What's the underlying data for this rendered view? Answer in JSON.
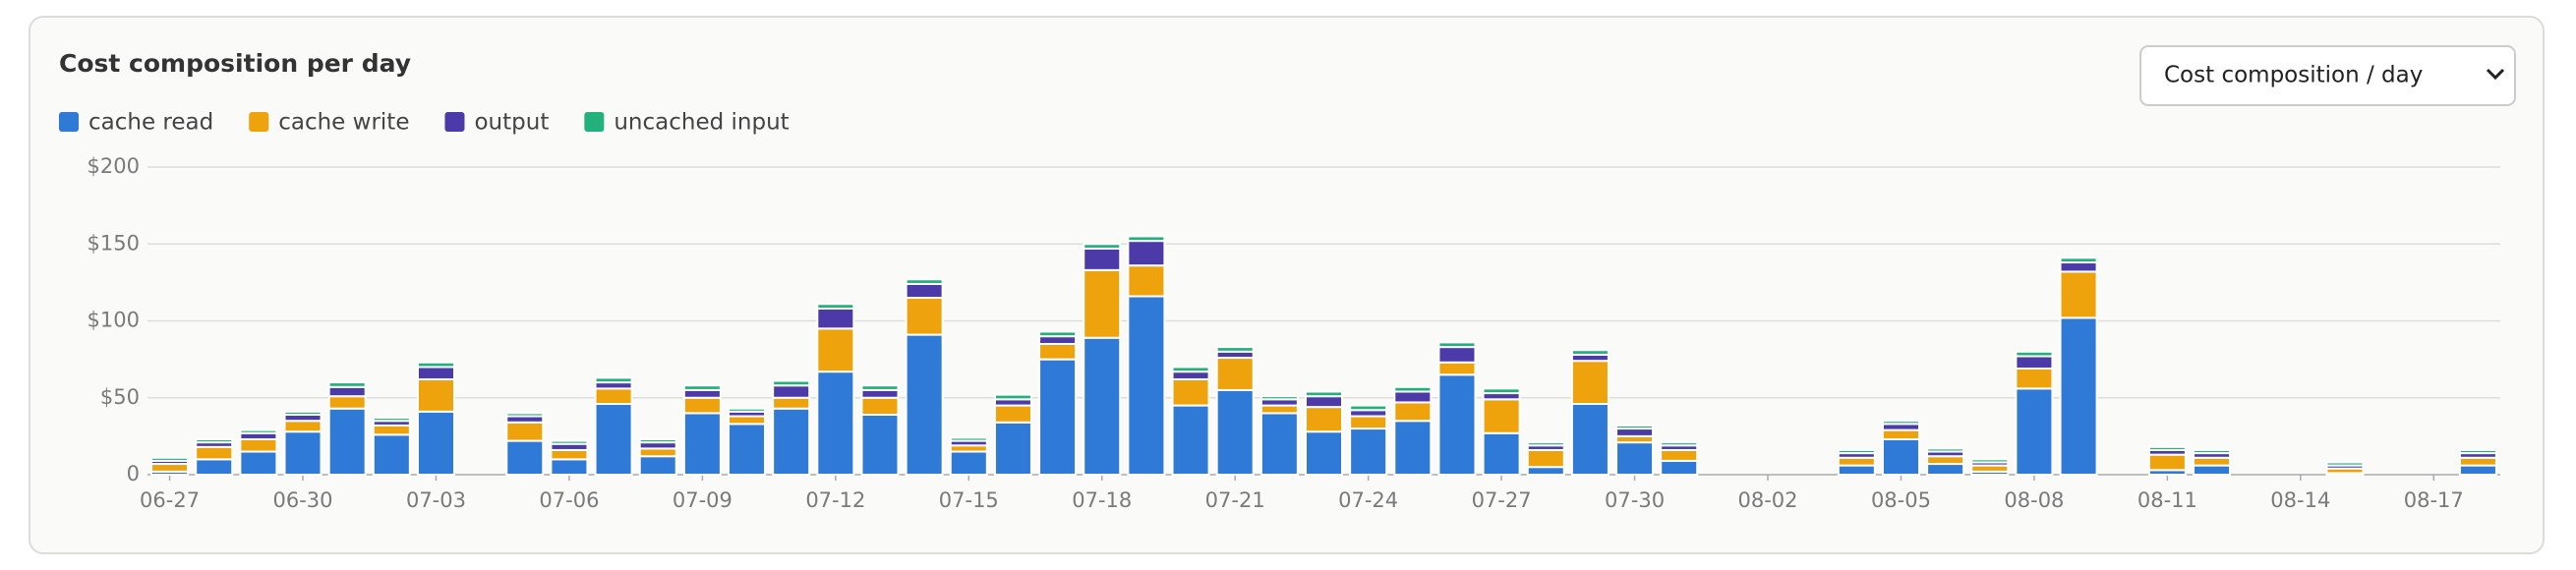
{
  "chart_data": {
    "type": "stacked-bar",
    "title": "Cost composition per day",
    "selector": "Cost composition / day",
    "categories": [
      "06-27",
      null,
      null,
      "06-30",
      null,
      null,
      "07-03",
      null,
      null,
      "07-06",
      null,
      null,
      "07-09",
      null,
      null,
      "07-12",
      null,
      null,
      "07-15",
      null,
      null,
      "07-18",
      null,
      null,
      "07-21",
      null,
      null,
      "07-24",
      null,
      null,
      "07-27",
      null,
      null,
      "07-30",
      null,
      null,
      "08-02",
      null,
      null,
      "08-05",
      null,
      null,
      "08-08",
      null,
      null,
      "08-11",
      null,
      null,
      "08-14",
      null,
      null,
      "08-17",
      null
    ],
    "series": [
      {
        "name": "cache read",
        "color": "#2f7ad6",
        "values": [
          2,
          10,
          15,
          28,
          43,
          26,
          41,
          0,
          22,
          10,
          46,
          12,
          40,
          33,
          43,
          67,
          39,
          91,
          15,
          34,
          75,
          89,
          116,
          45,
          55,
          40,
          28,
          30,
          35,
          65,
          27,
          5,
          46,
          21,
          9,
          0,
          0,
          0,
          6,
          23,
          7,
          2,
          56,
          102,
          0,
          3,
          6,
          0,
          0,
          1,
          0,
          0,
          6
        ]
      },
      {
        "name": "cache write",
        "color": "#eea20c",
        "values": [
          5,
          8,
          8,
          7,
          8,
          6,
          21,
          0,
          12,
          6,
          10,
          5,
          10,
          5,
          7,
          28,
          11,
          24,
          4,
          11,
          10,
          44,
          20,
          17,
          21,
          5,
          16,
          8,
          12,
          8,
          22,
          11,
          28,
          4,
          7,
          0,
          0,
          0,
          5,
          6,
          5,
          4,
          13,
          30,
          0,
          10,
          5,
          0,
          0,
          3,
          0,
          0,
          5
        ]
      },
      {
        "name": "output",
        "color": "#4b3aa8",
        "values": [
          2,
          3,
          4,
          4,
          6,
          3,
          8,
          0,
          4,
          4,
          4,
          4,
          5,
          3,
          8,
          13,
          5,
          9,
          3,
          4,
          5,
          14,
          16,
          5,
          4,
          4,
          7,
          4,
          7,
          10,
          4,
          3,
          4,
          5,
          3,
          0,
          0,
          0,
          3,
          4,
          3,
          2,
          8,
          6,
          0,
          3,
          3,
          0,
          0,
          2,
          0,
          0,
          3
        ]
      },
      {
        "name": "uncached input",
        "color": "#22b07d",
        "values": [
          2,
          2,
          2,
          2,
          3,
          2,
          3,
          0,
          2,
          2,
          3,
          2,
          3,
          2,
          3,
          3,
          3,
          3,
          2,
          3,
          3,
          3,
          3,
          3,
          3,
          2,
          3,
          3,
          3,
          3,
          3,
          2,
          3,
          2,
          2,
          0,
          0,
          0,
          2,
          2,
          2,
          2,
          3,
          3,
          0,
          2,
          2,
          0,
          0,
          2,
          0,
          0,
          2
        ]
      }
    ],
    "ylim": [
      0,
      200
    ],
    "yticks": [
      {
        "value": 0,
        "label": "0"
      },
      {
        "value": 50,
        "label": "$50"
      },
      {
        "value": 100,
        "label": "$100"
      },
      {
        "value": 150,
        "label": "$150"
      },
      {
        "value": 200,
        "label": "$200"
      }
    ],
    "grid": true
  }
}
